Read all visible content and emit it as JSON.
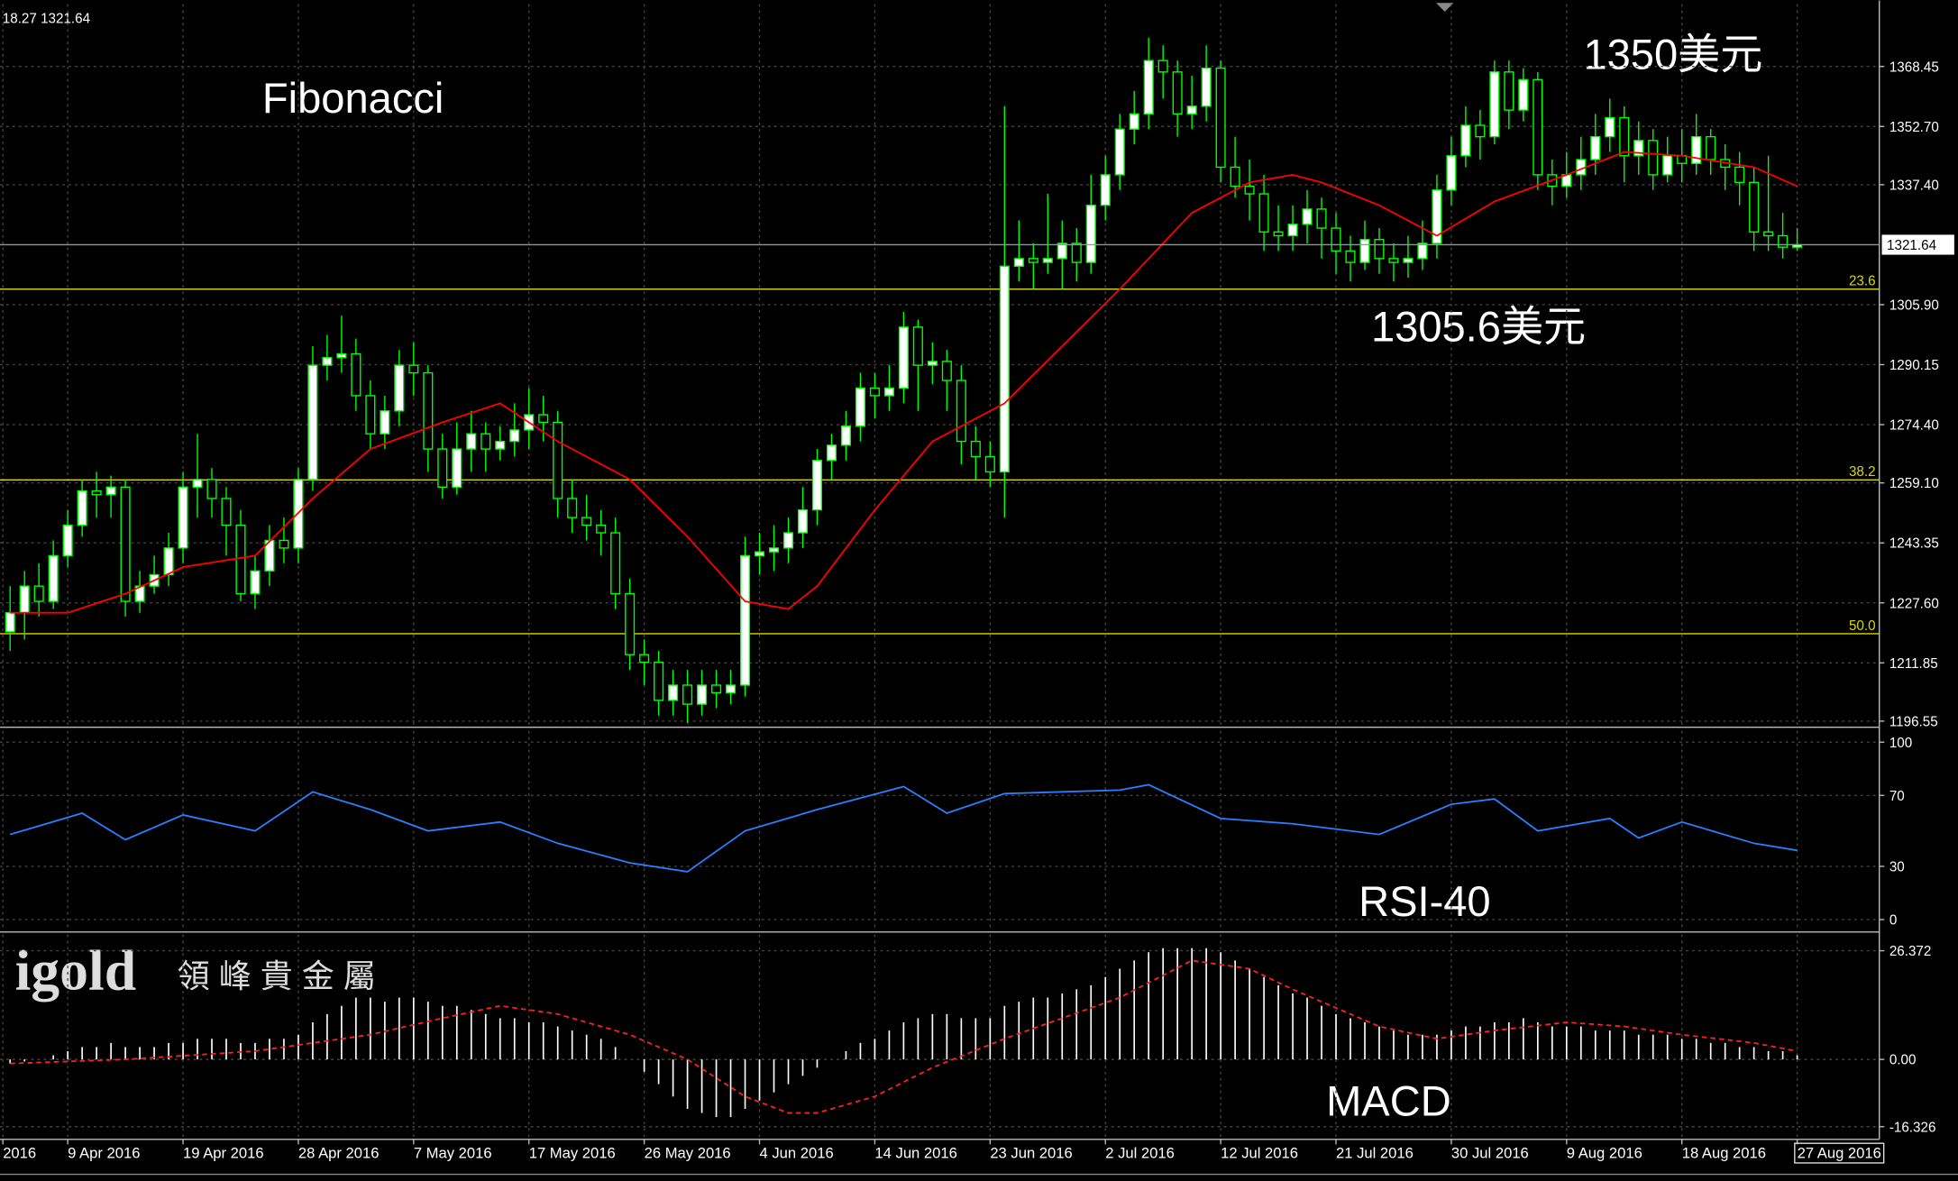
{
  "chart_data": [
    {
      "type": "candlestick",
      "header": "18.27 1321.64",
      "title": "Fibonacci",
      "annotations": [
        "1350美元",
        "1305.6美元"
      ],
      "color": "#00ff00",
      "ma": {
        "color": "#ff0000",
        "x": [
          0,
          4,
          8,
          12,
          17,
          21,
          25,
          30,
          34,
          38,
          43,
          47,
          51,
          54,
          56,
          60,
          64,
          69,
          73,
          77,
          82,
          86,
          89,
          91,
          95,
          99,
          103,
          108,
          112,
          116,
          121,
          124
        ],
        "values": [
          1225,
          1225,
          1230,
          1237,
          1240,
          1255,
          1268,
          1275,
          1280,
          1270,
          1260,
          1245,
          1228,
          1226,
          1232,
          1252,
          1270,
          1280,
          1295,
          1310,
          1330,
          1338,
          1340,
          1338,
          1332,
          1324,
          1333,
          1340,
          1346,
          1345,
          1342,
          1337
        ]
      },
      "candles": [
        [
          1220,
          1232,
          1215,
          1225
        ],
        [
          1225,
          1236,
          1218,
          1232
        ],
        [
          1232,
          1238,
          1224,
          1228
        ],
        [
          1228,
          1244,
          1226,
          1240
        ],
        [
          1240,
          1252,
          1237,
          1248
        ],
        [
          1248,
          1260,
          1245,
          1257
        ],
        [
          1257,
          1262,
          1250,
          1256
        ],
        [
          1256,
          1261,
          1250,
          1258
        ],
        [
          1258,
          1260,
          1224,
          1228
        ],
        [
          1228,
          1236,
          1225,
          1232
        ],
        [
          1232,
          1240,
          1230,
          1235
        ],
        [
          1235,
          1246,
          1232,
          1242
        ],
        [
          1242,
          1262,
          1238,
          1258
        ],
        [
          1258,
          1272,
          1250,
          1260
        ],
        [
          1260,
          1263,
          1250,
          1255
        ],
        [
          1255,
          1258,
          1240,
          1248
        ],
        [
          1248,
          1252,
          1228,
          1230
        ],
        [
          1230,
          1240,
          1226,
          1236
        ],
        [
          1236,
          1248,
          1232,
          1244
        ],
        [
          1244,
          1250,
          1238,
          1242
        ],
        [
          1242,
          1263,
          1238,
          1260
        ],
        [
          1260,
          1295,
          1257,
          1290
        ],
        [
          1290,
          1298,
          1286,
          1292
        ],
        [
          1292,
          1303,
          1288,
          1293
        ],
        [
          1293,
          1297,
          1278,
          1282
        ],
        [
          1282,
          1286,
          1268,
          1272
        ],
        [
          1272,
          1282,
          1268,
          1278
        ],
        [
          1278,
          1294,
          1274,
          1290
        ],
        [
          1290,
          1296,
          1282,
          1288
        ],
        [
          1288,
          1290,
          1262,
          1268
        ],
        [
          1268,
          1272,
          1255,
          1258
        ],
        [
          1258,
          1275,
          1256,
          1268
        ],
        [
          1268,
          1278,
          1262,
          1272
        ],
        [
          1272,
          1275,
          1262,
          1268
        ],
        [
          1268,
          1274,
          1265,
          1270
        ],
        [
          1270,
          1280,
          1266,
          1273
        ],
        [
          1273,
          1284,
          1268,
          1277
        ],
        [
          1277,
          1282,
          1270,
          1275
        ],
        [
          1275,
          1278,
          1250,
          1255
        ],
        [
          1255,
          1260,
          1246,
          1250
        ],
        [
          1250,
          1256,
          1244,
          1248
        ],
        [
          1248,
          1252,
          1240,
          1246
        ],
        [
          1246,
          1250,
          1226,
          1230
        ],
        [
          1230,
          1234,
          1210,
          1214
        ],
        [
          1214,
          1218,
          1206,
          1212
        ],
        [
          1212,
          1215,
          1198,
          1202
        ],
        [
          1202,
          1210,
          1198,
          1206
        ],
        [
          1206,
          1210,
          1196,
          1201
        ],
        [
          1201,
          1210,
          1198,
          1206
        ],
        [
          1206,
          1210,
          1200,
          1204
        ],
        [
          1204,
          1210,
          1201,
          1206
        ],
        [
          1206,
          1245,
          1203,
          1240
        ],
        [
          1240,
          1246,
          1235,
          1241
        ],
        [
          1241,
          1248,
          1236,
          1242
        ],
        [
          1242,
          1250,
          1238,
          1246
        ],
        [
          1246,
          1258,
          1242,
          1252
        ],
        [
          1252,
          1268,
          1248,
          1265
        ],
        [
          1265,
          1272,
          1260,
          1269
        ],
        [
          1269,
          1278,
          1265,
          1274
        ],
        [
          1274,
          1288,
          1270,
          1284
        ],
        [
          1284,
          1288,
          1276,
          1282
        ],
        [
          1282,
          1290,
          1278,
          1284
        ],
        [
          1284,
          1304,
          1280,
          1300
        ],
        [
          1300,
          1302,
          1278,
          1290
        ],
        [
          1290,
          1296,
          1285,
          1291
        ],
        [
          1291,
          1294,
          1278,
          1286
        ],
        [
          1286,
          1290,
          1264,
          1270
        ],
        [
          1270,
          1274,
          1260,
          1266
        ],
        [
          1266,
          1270,
          1258,
          1262
        ],
        [
          1262,
          1358,
          1250,
          1316
        ],
        [
          1316,
          1328,
          1312,
          1318
        ],
        [
          1318,
          1322,
          1310,
          1317
        ],
        [
          1317,
          1335,
          1314,
          1318
        ],
        [
          1318,
          1328,
          1310,
          1322
        ],
        [
          1322,
          1326,
          1312,
          1317
        ],
        [
          1317,
          1340,
          1314,
          1332
        ],
        [
          1332,
          1345,
          1328,
          1340
        ],
        [
          1340,
          1356,
          1336,
          1352
        ],
        [
          1352,
          1362,
          1348,
          1356
        ],
        [
          1356,
          1376,
          1352,
          1370
        ],
        [
          1370,
          1374,
          1360,
          1367
        ],
        [
          1367,
          1370,
          1350,
          1356
        ],
        [
          1356,
          1366,
          1352,
          1358
        ],
        [
          1358,
          1374,
          1354,
          1368
        ],
        [
          1368,
          1370,
          1338,
          1342
        ],
        [
          1342,
          1350,
          1334,
          1337
        ],
        [
          1337,
          1344,
          1328,
          1335
        ],
        [
          1335,
          1340,
          1320,
          1325
        ],
        [
          1325,
          1332,
          1320,
          1324
        ],
        [
          1324,
          1332,
          1320,
          1327
        ],
        [
          1327,
          1336,
          1322,
          1331
        ],
        [
          1331,
          1334,
          1318,
          1326
        ],
        [
          1326,
          1330,
          1314,
          1320
        ],
        [
          1320,
          1324,
          1312,
          1317
        ],
        [
          1317,
          1328,
          1315,
          1323
        ],
        [
          1323,
          1326,
          1314,
          1318
        ],
        [
          1318,
          1322,
          1312,
          1317
        ],
        [
          1317,
          1324,
          1313,
          1318
        ],
        [
          1318,
          1328,
          1315,
          1322
        ],
        [
          1322,
          1340,
          1318,
          1336
        ],
        [
          1336,
          1350,
          1332,
          1345
        ],
        [
          1345,
          1358,
          1342,
          1353
        ],
        [
          1353,
          1357,
          1344,
          1350
        ],
        [
          1350,
          1370,
          1348,
          1367
        ],
        [
          1367,
          1370,
          1352,
          1357
        ],
        [
          1357,
          1368,
          1354,
          1365
        ],
        [
          1365,
          1367,
          1336,
          1340
        ],
        [
          1340,
          1344,
          1332,
          1337
        ],
        [
          1337,
          1346,
          1334,
          1340
        ],
        [
          1340,
          1350,
          1336,
          1344
        ],
        [
          1344,
          1356,
          1340,
          1350
        ],
        [
          1350,
          1360,
          1346,
          1355
        ],
        [
          1355,
          1358,
          1338,
          1345
        ],
        [
          1345,
          1354,
          1340,
          1349
        ],
        [
          1349,
          1352,
          1336,
          1340
        ],
        [
          1340,
          1350,
          1338,
          1345
        ],
        [
          1345,
          1352,
          1338,
          1343
        ],
        [
          1343,
          1356,
          1340,
          1350
        ],
        [
          1350,
          1352,
          1340,
          1344
        ],
        [
          1344,
          1348,
          1336,
          1342
        ],
        [
          1342,
          1346,
          1332,
          1338
        ],
        [
          1338,
          1342,
          1320,
          1325
        ],
        [
          1325,
          1345,
          1320,
          1324
        ],
        [
          1324,
          1330,
          1318,
          1321
        ],
        [
          1321,
          1326,
          1320,
          1321.64
        ]
      ],
      "price_line": 1321.64,
      "levels": [
        {
          "value": 1310,
          "label": "23.6"
        },
        {
          "value": 1259.9,
          "label": "38.2"
        },
        {
          "value": 1219.5,
          "label": "50.0"
        }
      ],
      "level_color": "#d8d800",
      "xlim": [
        -0.7,
        129.7
      ],
      "ylim": [
        1195.6,
        1384.8
      ],
      "yticks": [
        1368.45,
        {
          "value": 1352.7,
          "label": "1352.70"
        },
        {
          "value": 1337.4,
          "label": "1337.40"
        },
        {
          "value": 1305.9,
          "label": "1305.90"
        },
        1290.15,
        {
          "value": 1274.4,
          "label": "1274.40"
        },
        {
          "value": 1259.1,
          "label": "1259.10"
        },
        1243.35,
        {
          "value": 1227.6,
          "label": "1227.60"
        },
        1211.85,
        1196.55
      ],
      "grid": true
    },
    {
      "type": "line",
      "title": "RSI-40",
      "color": "#2a7fff",
      "x": [
        0,
        5,
        8,
        12,
        17,
        21,
        25,
        29,
        34,
        38,
        43,
        47,
        51,
        56,
        62,
        65,
        69,
        77,
        79,
        84,
        89,
        95,
        100,
        103,
        106,
        111,
        113,
        116,
        121,
        124
      ],
      "values": [
        48,
        60,
        45,
        59,
        50,
        72,
        62,
        50,
        55,
        43,
        32,
        27,
        50,
        62,
        75,
        60,
        71,
        73,
        76,
        57,
        54,
        48,
        65,
        68,
        50,
        57,
        46,
        55,
        43,
        39
      ],
      "xlim": [
        -0.7,
        129.7
      ],
      "ylim": [
        -6.3,
        106.3
      ],
      "yticks": [
        100,
        70,
        30,
        0
      ],
      "grid": true
    },
    {
      "type": "macd",
      "title": "MACD",
      "logo": "igold",
      "logo_text": "領 峰 貴 金 屬",
      "color": "#ffffff",
      "histogram": [
        -1,
        -0.5,
        0,
        1,
        2,
        3,
        3,
        4,
        3,
        3,
        3,
        4,
        4,
        5,
        5,
        5,
        4,
        4,
        5,
        5,
        6,
        9,
        11,
        13,
        15,
        15,
        14,
        15,
        15,
        14,
        13,
        13,
        12,
        11,
        10,
        10,
        9,
        9,
        8,
        7,
        6,
        5,
        3,
        0,
        -3,
        -6,
        -9,
        -12,
        -13,
        -14,
        -14,
        -12,
        -10,
        -8,
        -6,
        -4,
        -2,
        0,
        2,
        4,
        5,
        7,
        9,
        10,
        11,
        11,
        10,
        10,
        10,
        13,
        14,
        15,
        15,
        16,
        17,
        18,
        20,
        22,
        24,
        26,
        27,
        27,
        27,
        27,
        26,
        24,
        22,
        20,
        18,
        16,
        15,
        13,
        11,
        10,
        9,
        8,
        7,
        6,
        6,
        6,
        7,
        8,
        8,
        9,
        9,
        10,
        9,
        8,
        8,
        8,
        7,
        7,
        7,
        6,
        6,
        6,
        5,
        5,
        4,
        4,
        3,
        3,
        2,
        2,
        1
      ],
      "signal": {
        "color": "#ff2020",
        "x": [
          0,
          8,
          17,
          25,
          30,
          34,
          38,
          43,
          47,
          51,
          54,
          56,
          60,
          64,
          69,
          73,
          77,
          82,
          86,
          89,
          95,
          99,
          103,
          108,
          112,
          116,
          121,
          124
        ],
        "values": [
          -1,
          0,
          2,
          6,
          10,
          13,
          11,
          6,
          0,
          -9,
          -13,
          -13,
          -9,
          -2,
          5,
          10,
          15,
          24,
          22,
          17,
          8,
          5,
          7,
          9,
          8,
          6,
          4,
          2
        ]
      },
      "xlim": [
        -0.7,
        129.7
      ],
      "ylim": [
        -19.4,
        30.3
      ],
      "yticks": [
        26.372,
        {
          "value": 0,
          "label": "0.00"
        },
        -16.326
      ],
      "grid": true,
      "xticks": [
        {
          "value": -0.5,
          "label": "2016"
        },
        {
          "value": 4,
          "label": "9 Apr 2016"
        },
        {
          "value": 12,
          "label": "19 Apr 2016"
        },
        {
          "value": 20,
          "label": "28 Apr 2016"
        },
        {
          "value": 28,
          "label": "7 May 2016"
        },
        {
          "value": 36,
          "label": "17 May 2016"
        },
        {
          "value": 44,
          "label": "26 May 2016"
        },
        {
          "value": 52,
          "label": "4 Jun 2016"
        },
        {
          "value": 60,
          "label": "14 Jun 2016"
        },
        {
          "value": 68,
          "label": "23 Jun 2016"
        },
        {
          "value": 76,
          "label": "2 Jul 2016"
        },
        {
          "value": 84,
          "label": "12 Jul 2016"
        },
        {
          "value": 92,
          "label": "21 Jul 2016"
        },
        {
          "value": 100,
          "label": "30 Jul 2016"
        },
        {
          "value": 108,
          "label": "9 Aug 2016"
        },
        {
          "value": 116,
          "label": "18 Aug 2016"
        },
        {
          "value": 124,
          "label": "27 Aug 2016"
        }
      ]
    }
  ]
}
